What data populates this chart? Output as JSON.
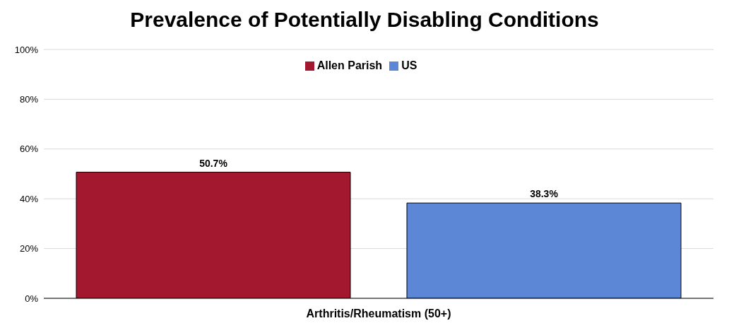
{
  "chart_data": {
    "type": "bar",
    "title": "Prevalence of Potentially Disabling Conditions",
    "categories": [
      "Arthritis/Rheumatism (50+)"
    ],
    "series": [
      {
        "name": "Allen Parish",
        "color": "#a3182e",
        "values": [
          50.7
        ],
        "value_labels": [
          "50.7%"
        ]
      },
      {
        "name": "US",
        "color": "#5b87d6",
        "values": [
          38.3
        ],
        "value_labels": [
          "38.3%"
        ]
      }
    ],
    "ylim": [
      0,
      100
    ],
    "yticks": [
      {
        "value": 0,
        "label": "0%"
      },
      {
        "value": 20,
        "label": "20%"
      },
      {
        "value": 40,
        "label": "40%"
      },
      {
        "value": 60,
        "label": "60%"
      },
      {
        "value": 80,
        "label": "80%"
      },
      {
        "value": 100,
        "label": "100%"
      }
    ],
    "grid": "y",
    "legend": "top"
  }
}
